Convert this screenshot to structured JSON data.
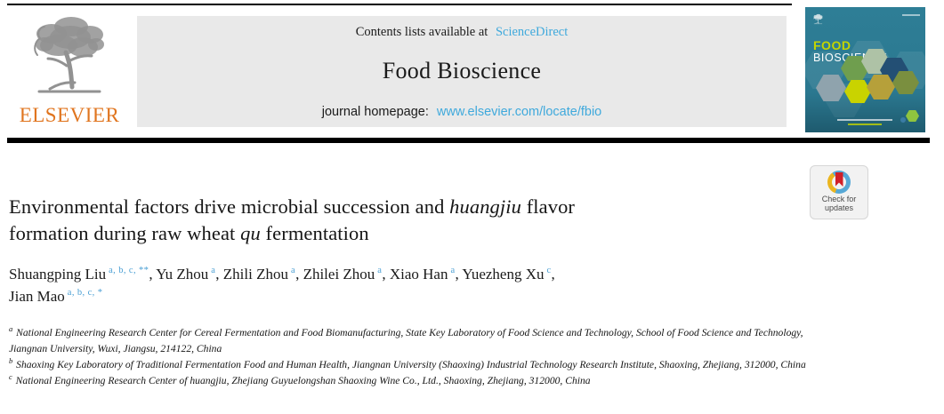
{
  "journal_header": {
    "contents_prefix": "Contents lists available at",
    "contents_link": "ScienceDirect",
    "journal_name": "Food Bioscience",
    "homepage_prefix": "journal homepage:",
    "homepage_link": "www.elsevier.com/locate/fbio"
  },
  "elsevier": {
    "wordmark": "ELSEVIER"
  },
  "cover": {
    "title_line1": "FOOD",
    "title_line2": "BIOSCIENCE"
  },
  "check_updates": {
    "line1": "Check for",
    "line2": "updates"
  },
  "article": {
    "title_segments": [
      {
        "text": "Environmental factors drive microbial succession and ",
        "italic": false
      },
      {
        "text": "huangjiu",
        "italic": true
      },
      {
        "text": " flavor",
        "italic": false,
        "break_after": true
      },
      {
        "text": "formation during raw wheat ",
        "italic": false
      },
      {
        "text": "qu",
        "italic": true
      },
      {
        "text": " fermentation",
        "italic": false
      }
    ],
    "authors": [
      {
        "name": "Shuangping Liu",
        "sup": "a, b, c, **",
        "sep": ", "
      },
      {
        "name": "Yu Zhou",
        "sup": "a",
        "sep": ", "
      },
      {
        "name": "Zhili Zhou",
        "sup": "a",
        "sep": ", "
      },
      {
        "name": "Zhilei Zhou",
        "sup": "a",
        "sep": ", "
      },
      {
        "name": "Xiao Han",
        "sup": "a",
        "sep": ", "
      },
      {
        "name": "Yuezheng Xu",
        "sup": "c",
        "sep": ",",
        "break_after": true
      },
      {
        "name": "Jian Mao",
        "sup": "a, b, c, *",
        "sep": ""
      }
    ],
    "affiliations": [
      {
        "marker": "a",
        "text": "National Engineering Research Center for Cereal Fermentation and Food Biomanufacturing, State Key Laboratory of Food Science and Technology, School of Food Science and Technology, Jiangnan University, Wuxi, Jiangsu, 214122, China"
      },
      {
        "marker": "b",
        "text": "Shaoxing Key Laboratory of Traditional Fermentation Food and Human Health, Jiangnan University (Shaoxing) Industrial Technology Research Institute, Shaoxing, Zhejiang, 312000, China"
      },
      {
        "marker": "c",
        "text": "National Engineering Research Center of huangjiu, Zhejiang Guyuelongshan Shaoxing Wine Co., Ltd., Shaoxing, Zhejiang, 312000, China"
      }
    ]
  },
  "colors": {
    "link_blue": "#3FA9DC",
    "elsevier_orange": "#E0751F",
    "rule_black": "#000000",
    "header_box_gray": "#E9E9E9",
    "cover_teal": "#2E7E96",
    "cover_teal_dark": "#1E5A6E",
    "cover_accent_green": "#C3D500",
    "crossmark_red": "#D02028",
    "crossmark_blue": "#56A8D6",
    "crossmark_yellow": "#EBB51E",
    "author_sup_blue": "#4A9FD4",
    "text_black": "#1A1A1A"
  }
}
